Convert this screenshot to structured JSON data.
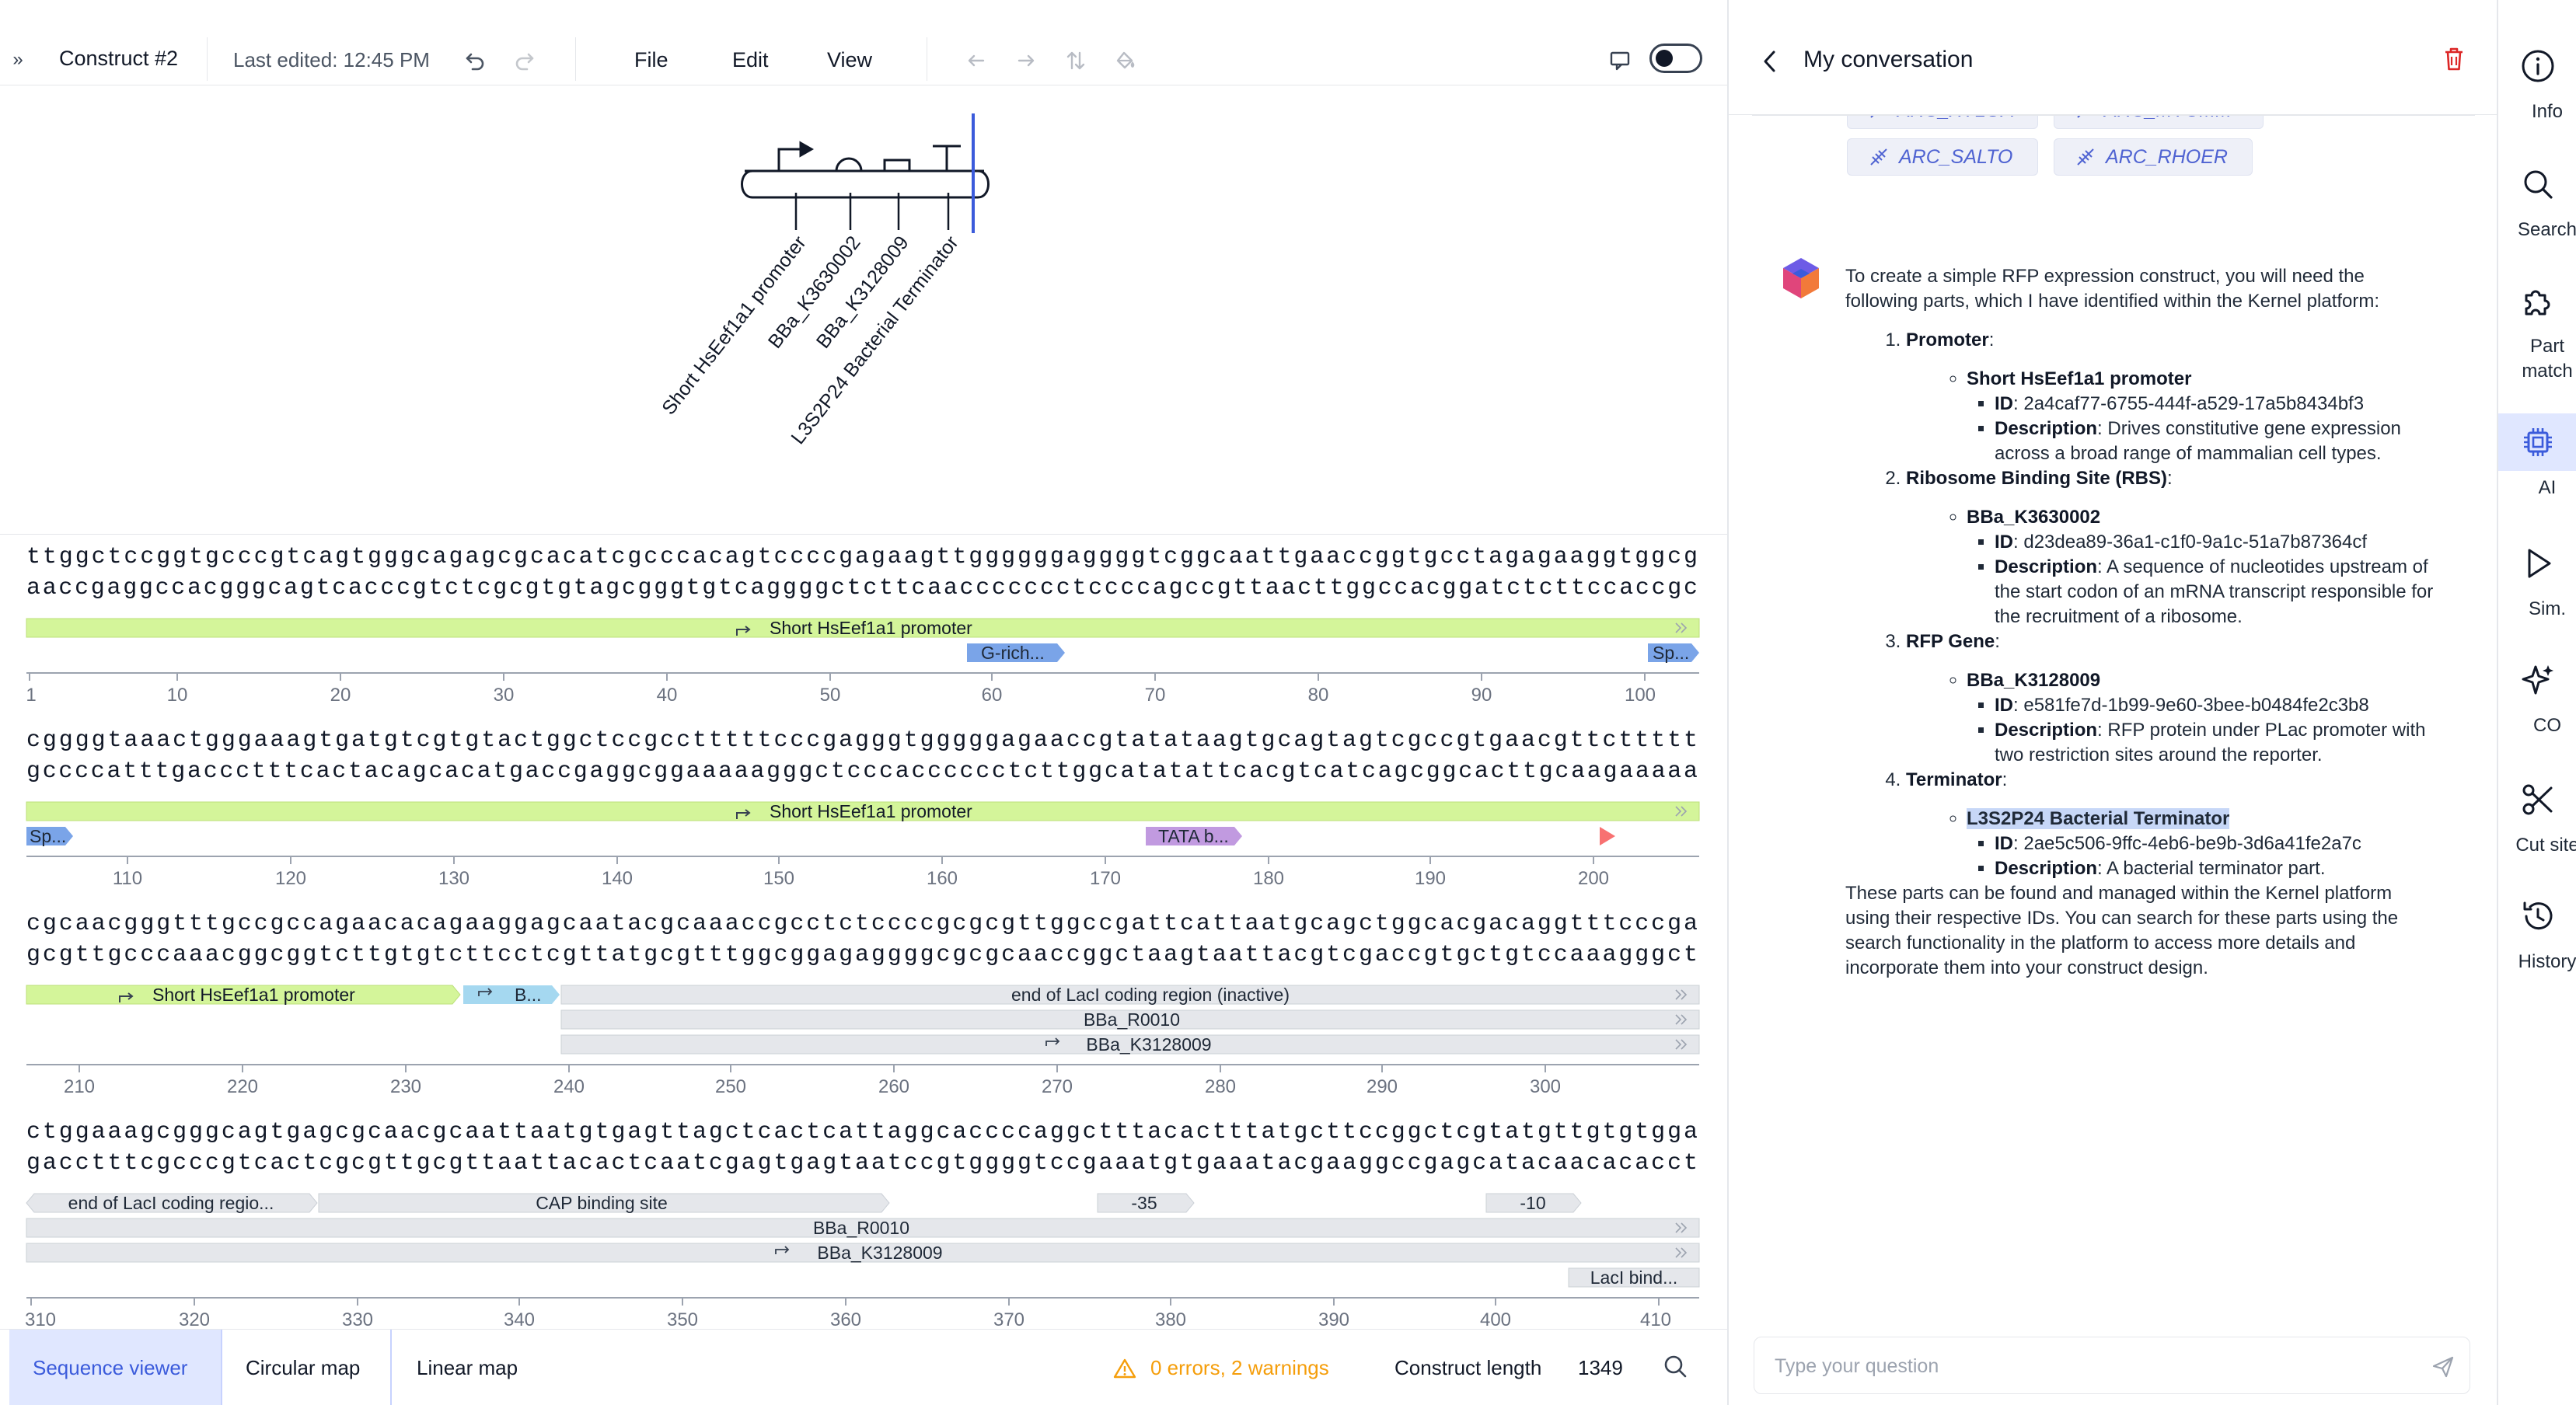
{
  "toolbar": {
    "title": "Construct #2",
    "last_edited": "Last edited: 12:45 PM",
    "menus": [
      "File",
      "Edit",
      "View"
    ]
  },
  "diagram": {
    "labels": [
      "Short HsEef1a1 promoter",
      "BBa_K3630002",
      "BBa_K3128009",
      "L3S2P24 Bacterial Terminator"
    ]
  },
  "sequence": {
    "rows": [
      {
        "top": "ttggctccggtgcccgtcagtgggcagagcgcacatcgcccacagtccccgagaagttggggggaggggtcggcaattgaaccggtgcctagagaaggtggcg",
        "bottom": "aaccgaggccacgggcagtcacccgtctcgcgtgtagcgggtgtcaggggctcttcaaccccccctccccagccgttaacttggccacggatctcttccaccgc",
        "ticks": [
          "1",
          "10",
          "20",
          "30",
          "40",
          "50",
          "60",
          "70",
          "80",
          "90",
          "100"
        ],
        "features": [
          {
            "label": "Short HsEef1a1 promoter",
            "kind": "promoter"
          },
          {
            "label": "G-rich...",
            "kind": "blue"
          },
          {
            "label": "Sp...",
            "kind": "blue"
          }
        ]
      },
      {
        "top": "cggggtaaactgggaaagtgatgtcgtgtactggctccgcctttttcccgagggtgggggagaaccgtatataagtgcagtagtcgccgtgaacgttcttttt",
        "bottom": "gccccatttgaccctttcactacagcacatgaccgaggcggaaaaagggctcccacccccctcttggcatatattcacgtcatcagcggcacttgcaagaaaaa",
        "ticks": [
          "110",
          "120",
          "130",
          "140",
          "150",
          "160",
          "170",
          "180",
          "190",
          "200"
        ],
        "features": [
          {
            "label": "Short HsEef1a1 promoter",
            "kind": "promoter"
          },
          {
            "label": "Sp...",
            "kind": "blue"
          },
          {
            "label": "TATA b...",
            "kind": "purple"
          }
        ]
      },
      {
        "top": "cgcaacgggtttgccgccagaacacagaaggagcaatacgcaaaccgcctctccccgcgcgttggccgattcattaatgcagctggcacgacaggtttcccga",
        "bottom": "gcgttgcccaaacggcggtcttgtgtcttcctcgttatgcgtttggcggagaggggcgcgcaaccggctaagtaattacgtcgaccgtgctgtccaaagggct",
        "ticks": [
          "210",
          "220",
          "230",
          "240",
          "250",
          "260",
          "270",
          "280",
          "290",
          "300"
        ],
        "features": [
          {
            "label": "Short HsEef1a1 promoter",
            "kind": "promoter"
          },
          {
            "label": "B...",
            "kind": "lightblue"
          },
          {
            "label": "end of LacI coding region (inactive)",
            "kind": "gray"
          },
          {
            "label": "BBa_R0010",
            "kind": "gray"
          },
          {
            "label": "BBa_K3128009",
            "kind": "gray"
          }
        ]
      },
      {
        "top": "ctggaaagcgggcagtgagcgcaacgcaattaatgtgagttagctcactcattaggcaccccaggctttacactttatgcttccggctcgtatgttgtgtgga",
        "bottom": "gacctttcgcccgtcactcgcgttgcgttaattacactcaatcgagtgagtaatccgtggggtccgaaatgtgaaatacgaaggccgagcatacaacacacct",
        "ticks": [
          "310",
          "320",
          "330",
          "340",
          "350",
          "360",
          "370",
          "380",
          "390",
          "400",
          "410"
        ],
        "features": [
          {
            "label": "end of LacI coding regio...",
            "kind": "gray"
          },
          {
            "label": "CAP binding site",
            "kind": "gray"
          },
          {
            "label": "-35",
            "kind": "gray"
          },
          {
            "label": "-10",
            "kind": "gray"
          },
          {
            "label": "BBa_R0010",
            "kind": "gray"
          },
          {
            "label": "BBa_K3128009",
            "kind": "gray"
          },
          {
            "label": "LacI bind...",
            "kind": "gray"
          }
        ]
      }
    ]
  },
  "bottom_bar": {
    "tabs": [
      "Sequence viewer",
      "Circular map",
      "Linear map"
    ],
    "active_tab": "Sequence viewer",
    "warnings": "0 errors, 2 warnings",
    "construct_length_label": "Construct length",
    "construct_length_value": "1349"
  },
  "chat": {
    "title": "My conversation",
    "chips_top": [
      "ARC_XYLOA",
      "ARC_MYCMM"
    ],
    "chips": [
      "ARC_SALTO",
      "ARC_RHOER"
    ],
    "intro": "To create a simple RFP expression construct, you will need the following parts, which I have identified within the Kernel platform:",
    "sections": [
      {
        "heading": "Promoter",
        "part": "Short HsEef1a1 promoter",
        "id": "2a4caf77-6755-444f-a529-17a5b8434bf3",
        "description": "Drives constitutive gene expression across a broad range of mammalian cell types."
      },
      {
        "heading": "Ribosome Binding Site (RBS)",
        "part": "BBa_K3630002",
        "id": "d23dea89-36a1-c1f0-9a1c-51a7b87364cf",
        "description": "A sequence of nucleotides upstream of the start codon of an mRNA transcript responsible for the recruitment of a ribosome."
      },
      {
        "heading": "RFP Gene",
        "part": "BBa_K3128009",
        "id": "e581fe7d-1b99-9e60-3bee-b0484fe2c3b8",
        "description": "RFP protein under PLac promoter with two restriction sites around the reporter."
      },
      {
        "heading": "Terminator",
        "part": "L3S2P24 Bacterial Terminator",
        "id": "2ae5c506-9ffc-4eb6-be9b-3d6a41fe2a7c",
        "description": "A bacterial terminator part."
      }
    ],
    "id_label": "ID",
    "description_label": "Description",
    "outro": "These parts can be found and managed within the Kernel platform using their respective IDs. You can search for these parts using the search functionality in the platform to access more details and incorporate them into your construct design.",
    "input_placeholder": "Type your question"
  },
  "rail": {
    "items": [
      "Info",
      "Search",
      "Part match",
      "AI",
      "Sim.",
      "CO",
      "Cut site",
      "History"
    ],
    "active": "AI"
  },
  "colors": {
    "accent": "#3b5bdb",
    "promoter": "#d4f59a",
    "feature_blue": "#7aa4e8",
    "feature_purple": "#c19ae0",
    "feature_gray": "#e5e7eb",
    "warning": "#f59e0b",
    "delete": "#dc2626"
  }
}
